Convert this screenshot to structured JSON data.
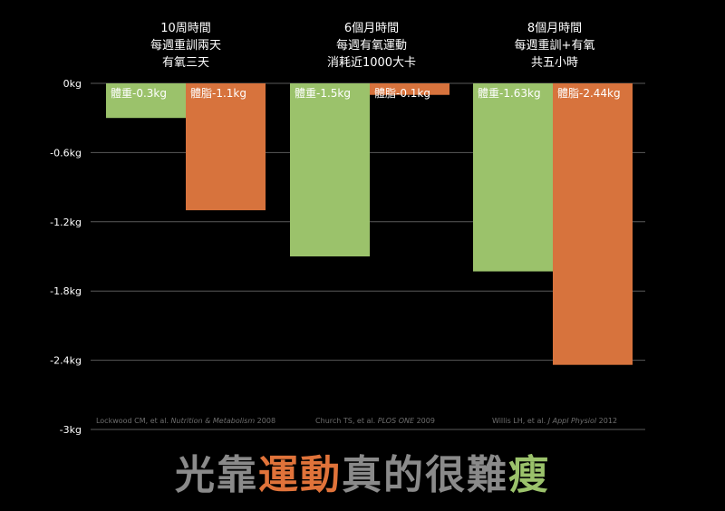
{
  "group_labels": [
    [
      "10周時間",
      "每週重訓兩天",
      "有氧三天"
    ],
    [
      "6個月時間",
      "每週有氧運動",
      "消耗近1000大卡"
    ],
    [
      "8個月時間",
      "每週重訓+有氧",
      "共五小時"
    ]
  ],
  "headline": {
    "part1": "光靠",
    "part2": "運動",
    "part3": "真的很難",
    "part4": "瘦"
  },
  "colors": {
    "body_weight": "#9bc26b",
    "body_fat": "#d7733d",
    "headline_gray": "#8a8a8a",
    "headline_orange": "#e0733a",
    "headline_green": "#9bc26b"
  },
  "chart_data": {
    "type": "bar",
    "categories": [
      "Lockwood CM, et al. Nutrition & Metabolism 2008",
      "Church TS, et al. PLOS ONE 2009",
      "Willis LH, et al. J Appl Physiol 2012"
    ],
    "series": [
      {
        "name": "體重",
        "values": [
          -0.3,
          -1.5,
          -1.63
        ]
      },
      {
        "name": "體脂",
        "values": [
          -1.1,
          -0.1,
          -2.44
        ]
      }
    ],
    "data_labels": [
      [
        "體重-0.3kg",
        "體脂-1.1kg"
      ],
      [
        "體重-1.5kg",
        "體脂-0.1kg"
      ],
      [
        "體重-1.63kg",
        "體脂-2.44kg"
      ]
    ],
    "citations": [
      {
        "authors": "Lockwood CM, et al. ",
        "journal": "Nutrition & Metabolism",
        "year": " 2008"
      },
      {
        "authors": "Church TS, et al. ",
        "journal": "PLOS ONE",
        "year": " 2009"
      },
      {
        "authors": "Willis LH, et al. ",
        "journal": "J Appl Physiol",
        "year": " 2012"
      }
    ],
    "yticks": [
      0,
      -0.6,
      -1.2,
      -1.8,
      -2.4,
      -3
    ],
    "ytick_labels": [
      "0kg",
      "-0.6kg",
      "-1.2kg",
      "-1.8kg",
      "-2.4kg",
      "-3kg"
    ],
    "ylim": [
      -3,
      0
    ],
    "grid": true,
    "title": "",
    "xlabel": "",
    "ylabel": ""
  }
}
